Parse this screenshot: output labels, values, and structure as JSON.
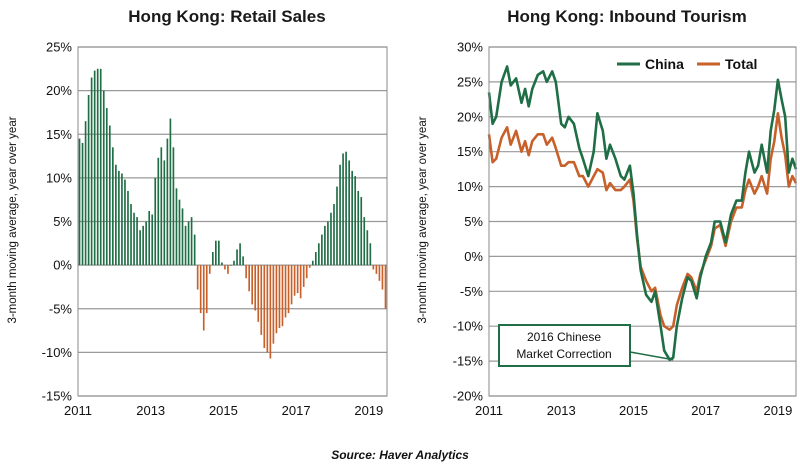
{
  "source": "Source: Haver Analytics",
  "colors": {
    "china": "#1f6e45",
    "total": "#c8602a",
    "grid": "#9a9a9a",
    "frame": "#888888"
  },
  "chart_data": [
    {
      "type": "bar",
      "title": "Hong Kong: Retail Sales",
      "ylabel": "3-month moving average, year over year",
      "xlabel": "",
      "ylim": [
        -15,
        25
      ],
      "xlim": [
        2011,
        2019.5
      ],
      "y_ticks": [
        "25%",
        "20%",
        "15%",
        "10%",
        "5%",
        "0%",
        "-5%",
        "-10%",
        "-15%"
      ],
      "x_ticks": [
        "2011",
        "2013",
        "2015",
        "2017",
        "2019"
      ],
      "grid": true,
      "x": [
        2011.0,
        2011.083,
        2011.167,
        2011.25,
        2011.333,
        2011.417,
        2011.5,
        2011.583,
        2011.667,
        2011.75,
        2011.833,
        2011.917,
        2012.0,
        2012.083,
        2012.167,
        2012.25,
        2012.333,
        2012.417,
        2012.5,
        2012.583,
        2012.667,
        2012.75,
        2012.833,
        2012.917,
        2013.0,
        2013.083,
        2013.167,
        2013.25,
        2013.333,
        2013.417,
        2013.5,
        2013.583,
        2013.667,
        2013.75,
        2013.833,
        2013.917,
        2014.0,
        2014.083,
        2014.167,
        2014.25,
        2014.333,
        2014.417,
        2014.5,
        2014.583,
        2014.667,
        2014.75,
        2014.833,
        2014.917,
        2015.0,
        2015.083,
        2015.167,
        2015.25,
        2015.333,
        2015.417,
        2015.5,
        2015.583,
        2015.667,
        2015.75,
        2015.833,
        2015.917,
        2016.0,
        2016.083,
        2016.167,
        2016.25,
        2016.333,
        2016.417,
        2016.5,
        2016.583,
        2016.667,
        2016.75,
        2016.833,
        2016.917,
        2017.0,
        2017.083,
        2017.167,
        2017.25,
        2017.333,
        2017.417,
        2017.5,
        2017.583,
        2017.667,
        2017.75,
        2017.833,
        2017.917,
        2018.0,
        2018.083,
        2018.167,
        2018.25,
        2018.333,
        2018.417,
        2018.5,
        2018.583,
        2018.667,
        2018.75,
        2018.833,
        2018.917,
        2019.0,
        2019.083,
        2019.167,
        2019.25,
        2019.333,
        2019.417
      ],
      "values": [
        14.5,
        14.0,
        16.5,
        19.5,
        21.5,
        22.3,
        22.5,
        22.5,
        20.0,
        18.0,
        16.0,
        13.5,
        11.5,
        10.8,
        10.5,
        9.8,
        8.5,
        7.0,
        6.0,
        5.5,
        4.0,
        4.5,
        5.0,
        6.2,
        5.8,
        10.0,
        12.3,
        13.5,
        12.0,
        14.5,
        16.8,
        13.5,
        8.8,
        7.5,
        6.5,
        4.5,
        5.0,
        5.5,
        3.5,
        -2.8,
        -5.5,
        -7.5,
        -5.5,
        -1.0,
        1.5,
        2.8,
        2.8,
        0.3,
        -0.5,
        -1.0,
        0.0,
        0.5,
        1.8,
        2.5,
        1.0,
        -1.5,
        -3.0,
        -4.5,
        -5.2,
        -6.5,
        -8.0,
        -9.5,
        -10.0,
        -10.7,
        -9.0,
        -7.8,
        -7.2,
        -7.0,
        -6.0,
        -5.5,
        -4.5,
        -3.5,
        -3.2,
        -3.8,
        -2.5,
        -1.5,
        -0.3,
        0.5,
        1.5,
        2.5,
        3.5,
        4.5,
        5.0,
        6.0,
        7.0,
        9.0,
        11.5,
        12.8,
        13.0,
        12.0,
        10.8,
        10.2,
        8.5,
        7.8,
        5.5,
        4.0,
        2.5,
        -0.5,
        -1.0,
        -1.8,
        -2.8,
        -5.0
      ]
    },
    {
      "type": "line",
      "title": "Hong Kong: Inbound Tourism",
      "ylabel": "3-month moving average, year over year",
      "xlabel": "",
      "ylim": [
        -20,
        30
      ],
      "xlim": [
        2011,
        2019.5
      ],
      "y_ticks": [
        "30%",
        "25%",
        "20%",
        "15%",
        "10%",
        "5%",
        "0%",
        "-5%",
        "-10%",
        "-15%",
        "-20%"
      ],
      "x_ticks": [
        "2011",
        "2013",
        "2015",
        "2017",
        "2019"
      ],
      "grid": true,
      "legend": "top-right",
      "annotation": {
        "text_line1": "2016 Chinese",
        "text_line2": "Market Correction",
        "x": 2016.1,
        "y": -14.8
      },
      "series": [
        {
          "name": "China",
          "x": [
            2011.0,
            2011.1,
            2011.2,
            2011.35,
            2011.5,
            2011.6,
            2011.75,
            2011.9,
            2012.0,
            2012.1,
            2012.2,
            2012.35,
            2012.5,
            2012.6,
            2012.75,
            2012.85,
            2013.0,
            2013.1,
            2013.2,
            2013.35,
            2013.5,
            2013.6,
            2013.75,
            2013.9,
            2014.0,
            2014.15,
            2014.25,
            2014.35,
            2014.5,
            2014.65,
            2014.75,
            2014.9,
            2015.0,
            2015.1,
            2015.2,
            2015.35,
            2015.5,
            2015.6,
            2015.75,
            2015.85,
            2016.0,
            2016.1,
            2016.2,
            2016.35,
            2016.5,
            2016.6,
            2016.75,
            2016.85,
            2017.0,
            2017.15,
            2017.25,
            2017.4,
            2017.55,
            2017.7,
            2017.85,
            2018.0,
            2018.1,
            2018.2,
            2018.35,
            2018.45,
            2018.55,
            2018.7,
            2018.8,
            2018.9,
            2019.0,
            2019.1,
            2019.2,
            2019.3,
            2019.4,
            2019.5
          ],
          "y": [
            23.5,
            19.0,
            20.0,
            25.0,
            27.2,
            24.5,
            25.5,
            22.0,
            24.0,
            21.5,
            24.0,
            26.0,
            26.5,
            25.0,
            26.5,
            25.0,
            19.0,
            18.5,
            20.0,
            19.0,
            15.5,
            14.0,
            11.5,
            15.0,
            20.5,
            18.0,
            14.0,
            16.0,
            14.0,
            11.5,
            11.0,
            13.0,
            9.0,
            3.0,
            -2.0,
            -5.5,
            -6.5,
            -5.0,
            -10.0,
            -13.5,
            -14.8,
            -14.5,
            -10.0,
            -6.0,
            -3.0,
            -3.5,
            -6.0,
            -3.0,
            0.0,
            2.0,
            5.0,
            5.0,
            2.0,
            6.0,
            8.0,
            8.0,
            12.0,
            15.0,
            12.0,
            13.0,
            16.0,
            12.0,
            18.0,
            21.0,
            25.3,
            22.5,
            20.0,
            12.0,
            14.0,
            12.5
          ]
        },
        {
          "name": "Total",
          "x": [
            2011.0,
            2011.1,
            2011.2,
            2011.35,
            2011.5,
            2011.6,
            2011.75,
            2011.9,
            2012.0,
            2012.1,
            2012.2,
            2012.35,
            2012.5,
            2012.6,
            2012.75,
            2012.85,
            2013.0,
            2013.1,
            2013.2,
            2013.35,
            2013.5,
            2013.6,
            2013.75,
            2013.9,
            2014.0,
            2014.15,
            2014.25,
            2014.35,
            2014.5,
            2014.65,
            2014.75,
            2014.9,
            2015.0,
            2015.1,
            2015.2,
            2015.35,
            2015.5,
            2015.6,
            2015.75,
            2015.85,
            2016.0,
            2016.1,
            2016.2,
            2016.35,
            2016.5,
            2016.6,
            2016.75,
            2016.85,
            2017.0,
            2017.15,
            2017.25,
            2017.4,
            2017.55,
            2017.7,
            2017.85,
            2018.0,
            2018.1,
            2018.2,
            2018.35,
            2018.45,
            2018.55,
            2018.7,
            2018.8,
            2018.9,
            2019.0,
            2019.1,
            2019.2,
            2019.3,
            2019.4,
            2019.5
          ],
          "y": [
            17.5,
            13.5,
            14.0,
            17.0,
            18.5,
            16.0,
            18.0,
            15.0,
            16.5,
            14.5,
            16.5,
            17.5,
            17.5,
            16.0,
            17.0,
            15.5,
            13.0,
            13.0,
            13.5,
            13.5,
            11.5,
            11.5,
            10.0,
            11.5,
            12.5,
            12.0,
            9.5,
            10.5,
            9.5,
            9.5,
            10.0,
            11.0,
            8.0,
            2.5,
            -1.5,
            -3.5,
            -5.0,
            -4.5,
            -8.5,
            -10.0,
            -10.5,
            -10.0,
            -7.0,
            -4.5,
            -2.5,
            -3.0,
            -5.0,
            -2.5,
            -0.5,
            1.5,
            4.0,
            4.5,
            1.5,
            5.0,
            7.0,
            7.0,
            9.5,
            11.0,
            9.0,
            10.0,
            11.5,
            9.0,
            14.0,
            16.5,
            20.5,
            17.0,
            14.5,
            10.0,
            11.5,
            10.5
          ]
        }
      ]
    }
  ]
}
